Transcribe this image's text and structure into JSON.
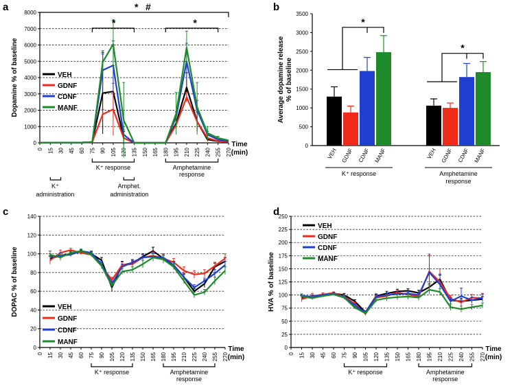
{
  "chart_data": [
    {
      "id": "a",
      "panel_label": "a",
      "type": "line",
      "ylabel": "Dopamine % of baseline",
      "xlabel": "Time (min)",
      "xlabel_lines": [
        "Time",
        "(min)"
      ],
      "x": [
        0,
        15,
        30,
        45,
        60,
        75,
        90,
        105,
        120,
        135,
        150,
        165,
        180,
        195,
        210,
        225,
        240,
        255,
        270
      ],
      "ylim": [
        0,
        8000
      ],
      "yticks": [
        0,
        1000,
        2000,
        3000,
        4000,
        5000,
        6000,
        7000,
        8000
      ],
      "series": [
        {
          "name": "VEH",
          "color": "#000000",
          "values": [
            0,
            15,
            15,
            15,
            15,
            50,
            3050,
            3150,
            300,
            0,
            0,
            0,
            0,
            1200,
            3400,
            1300,
            200,
            100,
            50
          ],
          "errors": [
            0,
            0,
            0,
            0,
            0,
            0,
            2500,
            1600,
            400,
            0,
            0,
            0,
            0,
            200,
            900,
            600,
            100,
            0,
            0
          ]
        },
        {
          "name": "GDNF",
          "color": "#ee2a1b",
          "values": [
            0,
            15,
            15,
            15,
            15,
            50,
            1750,
            2050,
            300,
            0,
            0,
            0,
            0,
            1100,
            2800,
            1300,
            300,
            100,
            50
          ],
          "errors": [
            0,
            0,
            0,
            0,
            0,
            0,
            300,
            1600,
            200,
            0,
            0,
            0,
            0,
            200,
            300,
            800,
            200,
            0,
            0
          ]
        },
        {
          "name": "CDNF",
          "color": "#1f3fd0",
          "values": [
            0,
            15,
            15,
            15,
            15,
            50,
            4450,
            4750,
            500,
            0,
            0,
            0,
            0,
            1600,
            5000,
            2000,
            500,
            200,
            100
          ],
          "errors": [
            0,
            0,
            0,
            0,
            0,
            0,
            1000,
            1500,
            300,
            0,
            0,
            0,
            0,
            300,
            1100,
            600,
            200,
            0,
            0
          ]
        },
        {
          "name": "MANF",
          "color": "#1e8a2a",
          "values": [
            0,
            15,
            15,
            15,
            15,
            50,
            4950,
            6050,
            1400,
            0,
            0,
            0,
            0,
            1800,
            5850,
            2200,
            600,
            300,
            150
          ],
          "errors": [
            0,
            0,
            0,
            0,
            0,
            0,
            700,
            1500,
            2300,
            0,
            0,
            0,
            0,
            1300,
            1000,
            1500,
            400,
            100,
            0
          ]
        }
      ],
      "annotations": {
        "top_star": "*",
        "top_hash": "#",
        "k_star": "*",
        "amph_star": "*",
        "k_response": "K⁺ response",
        "amph_response_lines": [
          "Amphetamine",
          "response"
        ],
        "k_admin_lines": [
          "K⁺",
          "administration"
        ],
        "amph_admin_lines": [
          "Amphet.",
          "administration"
        ]
      }
    },
    {
      "id": "b",
      "panel_label": "b",
      "type": "bar",
      "ylabel": "Average dopamine release % of baseline",
      "ylabel_lines": [
        "Average dopamine release",
        "% of baseline"
      ],
      "ylim": [
        0,
        3500
      ],
      "yticks": [
        0,
        500,
        1000,
        1500,
        2000,
        2500,
        3000,
        3500
      ],
      "groups": [
        {
          "name": "K⁺ response",
          "star": "*",
          "bars": [
            {
              "label": "VEH",
              "value": 1300,
              "error": 260,
              "color": "#000000"
            },
            {
              "label": "GDNF",
              "value": 880,
              "error": 170,
              "color": "#ee2a1b"
            },
            {
              "label": "CDNF",
              "value": 1980,
              "error": 360,
              "color": "#1f3fd0"
            },
            {
              "label": "MANF",
              "value": 2480,
              "error": 440,
              "color": "#1e8a2a"
            }
          ]
        },
        {
          "name": "Amphetamine response",
          "name_lines": [
            "Amphetamine",
            "response"
          ],
          "star": "*",
          "bars": [
            {
              "label": "VEH",
              "value": 1060,
              "error": 180,
              "color": "#000000"
            },
            {
              "label": "GDNF",
              "value": 1000,
              "error": 130,
              "color": "#ee2a1b"
            },
            {
              "label": "CDNF",
              "value": 1820,
              "error": 360,
              "color": "#1f3fd0"
            },
            {
              "label": "MANF",
              "value": 1950,
              "error": 280,
              "color": "#1e8a2a"
            }
          ]
        }
      ]
    },
    {
      "id": "c",
      "panel_label": "c",
      "type": "line",
      "ylabel": "DOPAC % of baseline",
      "xlabel_lines": [
        "Time",
        "(min)"
      ],
      "x": [
        0,
        15,
        30,
        45,
        60,
        75,
        90,
        105,
        120,
        135,
        150,
        165,
        180,
        195,
        210,
        225,
        240,
        255,
        270
      ],
      "ylim": [
        0,
        140
      ],
      "yticks": [
        0,
        20,
        40,
        60,
        80,
        100,
        120,
        140
      ],
      "series": [
        {
          "name": "VEH",
          "color": "#000000",
          "values": [
            null,
            95,
            98,
            100,
            102,
            100,
            93,
            64,
            88,
            90,
            97,
            103,
            95,
            88,
            75,
            60,
            68,
            86,
            92
          ],
          "errors": [
            null,
            3,
            3,
            2,
            2,
            2,
            3,
            4,
            4,
            3,
            3,
            4,
            4,
            4,
            4,
            3,
            4,
            4,
            4
          ]
        },
        {
          "name": "GDNF",
          "color": "#ee2a1b",
          "values": [
            null,
            93,
            101,
            104,
            101,
            99,
            87,
            72,
            88,
            89,
            96,
            98,
            95,
            91,
            82,
            78,
            79,
            87,
            95
          ],
          "errors": [
            null,
            4,
            3,
            2,
            2,
            2,
            3,
            3,
            3,
            3,
            3,
            4,
            4,
            4,
            4,
            4,
            4,
            4,
            5
          ]
        },
        {
          "name": "CDNF",
          "color": "#1f3fd0",
          "values": [
            null,
            97,
            98,
            99,
            103,
            101,
            89,
            68,
            86,
            91,
            96,
            97,
            96,
            88,
            75,
            64,
            71,
            79,
            88
          ],
          "errors": [
            null,
            3,
            3,
            2,
            2,
            2,
            3,
            3,
            3,
            3,
            3,
            4,
            4,
            3,
            3,
            3,
            3,
            4,
            4
          ]
        },
        {
          "name": "MANF",
          "color": "#1e8a2a",
          "values": [
            null,
            99,
            96,
            101,
            103,
            99,
            87,
            66,
            81,
            83,
            89,
            96,
            94,
            86,
            71,
            56,
            59,
            71,
            82
          ],
          "errors": [
            null,
            4,
            3,
            2,
            2,
            2,
            3,
            3,
            3,
            3,
            4,
            4,
            4,
            3,
            3,
            3,
            3,
            4,
            4
          ]
        }
      ],
      "annotations": {
        "k_response": "K⁺ response",
        "amph_response_lines": [
          "Amphetamine",
          "response"
        ]
      }
    },
    {
      "id": "d",
      "panel_label": "d",
      "type": "line",
      "ylabel": "HVA % of baseline",
      "xlabel_lines": [
        "Time",
        "(min)"
      ],
      "x": [
        0,
        15,
        30,
        45,
        60,
        75,
        90,
        105,
        120,
        135,
        150,
        165,
        180,
        195,
        210,
        225,
        240,
        255,
        270
      ],
      "ylim": [
        0,
        250
      ],
      "yticks": [
        0,
        25,
        50,
        75,
        100,
        125,
        150,
        175,
        200,
        225,
        250
      ],
      "series": [
        {
          "name": "VEH",
          "color": "#000000",
          "values": [
            null,
            95,
            97,
            100,
            103,
            100,
            88,
            67,
            98,
            103,
            107,
            108,
            104,
            115,
            130,
            90,
            88,
            90,
            92
          ],
          "errors": [
            null,
            4,
            3,
            2,
            2,
            3,
            3,
            3,
            4,
            4,
            4,
            4,
            5,
            6,
            8,
            5,
            5,
            5,
            5
          ]
        },
        {
          "name": "GDNF",
          "color": "#ee2a1b",
          "values": [
            null,
            92,
            98,
            101,
            104,
            97,
            83,
            64,
            95,
            98,
            105,
            101,
            97,
            145,
            125,
            93,
            86,
            95,
            94
          ],
          "errors": [
            null,
            5,
            5,
            3,
            2,
            3,
            3,
            3,
            4,
            4,
            5,
            4,
            5,
            30,
            25,
            6,
            6,
            6,
            7
          ]
        },
        {
          "name": "CDNF",
          "color": "#1f3fd0",
          "values": [
            null,
            98,
            97,
            100,
            102,
            96,
            80,
            67,
            97,
            100,
            102,
            103,
            100,
            143,
            120,
            88,
            98,
            90,
            95
          ],
          "errors": [
            null,
            4,
            3,
            2,
            2,
            3,
            3,
            3,
            4,
            4,
            4,
            4,
            5,
            35,
            20,
            6,
            15,
            6,
            8
          ]
        },
        {
          "name": "MANF",
          "color": "#1e8a2a",
          "values": [
            null,
            97,
            94,
            98,
            101,
            95,
            76,
            65,
            90,
            94,
            96,
            97,
            95,
            110,
            106,
            77,
            73,
            77,
            80
          ],
          "errors": [
            null,
            4,
            3,
            2,
            2,
            3,
            3,
            3,
            4,
            5,
            5,
            5,
            5,
            8,
            6,
            6,
            6,
            5,
            5
          ]
        }
      ],
      "annotations": {
        "k_response": "K⁺ response",
        "amph_response_lines": [
          "Amphetamine",
          "response"
        ]
      }
    }
  ]
}
